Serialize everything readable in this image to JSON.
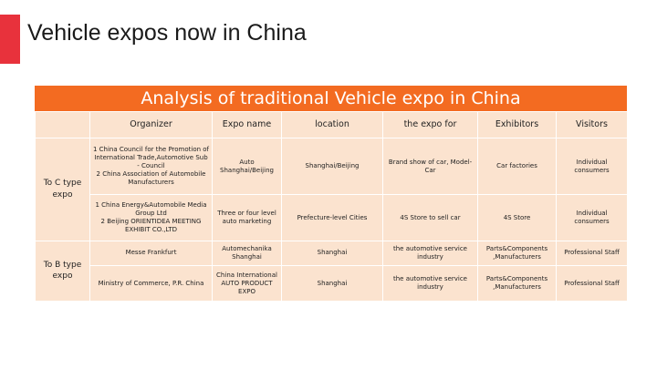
{
  "slide": {
    "title": "Vehicle expos now in China",
    "accent_color": "#e8323c",
    "banner_color": "#f36b21",
    "table_color": "#fbe3cf"
  },
  "table": {
    "title": "Analysis of traditional Vehicle expo in China",
    "headers": [
      "",
      "Organizer",
      "Expo name",
      "location",
      "the expo for",
      "Exhibitors",
      "Visitors"
    ],
    "groups": [
      {
        "label": "To C type expo",
        "rows": [
          [
            "1 China Council for the Promotion of International Trade,Automotive Sub - Council\n2 China Association of Automobile Manufacturers",
            "Auto Shanghai/Beijing",
            "Shanghai/Beijing",
            "Brand show of car, Model-Car",
            "Car factories",
            "Individual consumers"
          ],
          [
            "1 China Energy&Automobile Media Group Ltd\n2 Beijing ORIENTIDEA MEETING EXHIBIT CO.,LTD",
            "Three or four level auto marketing",
            "Prefecture-level Cities",
            "4S Store to sell car",
            "4S Store",
            "Individual consumers"
          ]
        ]
      },
      {
        "label": "To B type expo",
        "rows": [
          [
            "Messe Frankfurt",
            "Automechanika Shanghai",
            "Shanghai",
            "the automotive service industry",
            "Parts&Components ,Manufacturers",
            "Professional Staff"
          ],
          [
            "Ministry of Commerce, P.R. China",
            "China International AUTO PRODUCT EXPO",
            "Shanghai",
            "the automotive service industry",
            "Parts&Components ,Manufacturers",
            "Professional Staff"
          ]
        ]
      }
    ]
  }
}
